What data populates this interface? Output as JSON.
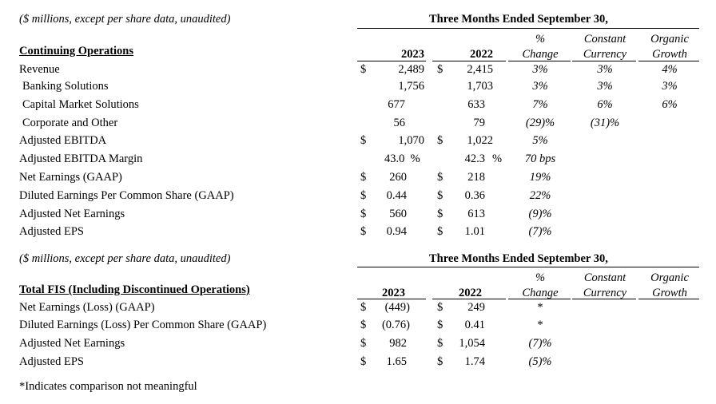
{
  "sec1": {
    "note": "($ millions, except per share data, unaudited)",
    "period": "Three Months Ended September 30,",
    "title": "Continuing Operations",
    "cols": {
      "y1": "2023",
      "y2": "2022",
      "chg1": "%",
      "chg2": "Change",
      "cc1": "Constant",
      "cc2": "Currency",
      "og1": "Organic",
      "og2": "Growth"
    },
    "rows": [
      {
        "label": "Revenue",
        "d1": "$",
        "v1": "2,489",
        "d2": "$",
        "v2": "2,415",
        "p2": "",
        "chg": "3%",
        "cc": "3%",
        "og": "4%"
      },
      {
        "label": "Banking Solutions",
        "d1": "",
        "v1": "1,756",
        "d2": "",
        "v2": "1,703",
        "p2": "",
        "chg": "3%",
        "cc": "3%",
        "og": "3%"
      },
      {
        "label": "Capital Market Solutions",
        "d1": "",
        "v1": "677",
        "d2": "",
        "v2": "633",
        "p2": "",
        "chg": "7%",
        "cc": "6%",
        "og": "6%"
      },
      {
        "label": "Corporate and Other",
        "d1": "",
        "v1": "56",
        "d2": "",
        "v2": "79",
        "p2": "",
        "chg": "(29)%",
        "cc": "(31)%",
        "og": ""
      },
      {
        "label": "Adjusted EBITDA",
        "d1": "$",
        "v1": "1,070",
        "d2": "$",
        "v2": "1,022",
        "p2": "",
        "chg": "5%",
        "cc": "",
        "og": ""
      },
      {
        "label": "Adjusted EBITDA Margin",
        "d1": "",
        "v1": "43.0  %",
        "d2": "",
        "v2": "42.3",
        "p2": "%",
        "chg": "70 bps",
        "cc": "",
        "og": ""
      },
      {
        "label": "Net Earnings (GAAP)",
        "d1": "$",
        "v1": "260",
        "d2": "$",
        "v2": "218",
        "p2": "",
        "chg": "19%",
        "cc": "",
        "og": ""
      },
      {
        "label": "Diluted Earnings Per Common Share (GAAP)",
        "d1": "$",
        "v1": "0.44",
        "d2": "$",
        "v2": "0.36",
        "p2": "",
        "chg": "22%",
        "cc": "",
        "og": ""
      },
      {
        "label": "Adjusted Net Earnings",
        "d1": "$",
        "v1": "560",
        "d2": "$",
        "v2": "613",
        "p2": "",
        "chg": "(9)%",
        "cc": "",
        "og": ""
      },
      {
        "label": "Adjusted EPS",
        "d1": "$",
        "v1": "0.94",
        "d2": "$",
        "v2": "1.01",
        "p2": "",
        "chg": "(7)%",
        "cc": "",
        "og": ""
      }
    ]
  },
  "sec2": {
    "note": "($ millions, except per share data, unaudited)",
    "period": "Three Months Ended September 30,",
    "title": "Total FIS (Including Discontinued Operations)",
    "cols": {
      "y1": "2023",
      "y2": "2022",
      "chg1": "%",
      "chg2": "Change",
      "cc1": "Constant",
      "cc2": "Currency",
      "og1": "Organic",
      "og2": "Growth"
    },
    "rows": [
      {
        "label": "Net Earnings (Loss) (GAAP)",
        "d1": "$",
        "v1": "(449)",
        "d2": "$",
        "v2": "249",
        "chg": "*"
      },
      {
        "label": "Diluted Earnings (Loss) Per Common Share (GAAP)",
        "d1": "$",
        "v1": "(0.76)",
        "d2": "$",
        "v2": "0.41",
        "chg": "*"
      },
      {
        "label": "Adjusted Net Earnings",
        "d1": "$",
        "v1": "982",
        "d2": "$",
        "v2": "1,054",
        "chg": "(7)%"
      },
      {
        "label": "Adjusted EPS",
        "d1": "$",
        "v1": "1.65",
        "d2": "$",
        "v2": "1.74",
        "chg": "(5)%"
      }
    ]
  },
  "footnote": "*Indicates comparison not meaningful"
}
